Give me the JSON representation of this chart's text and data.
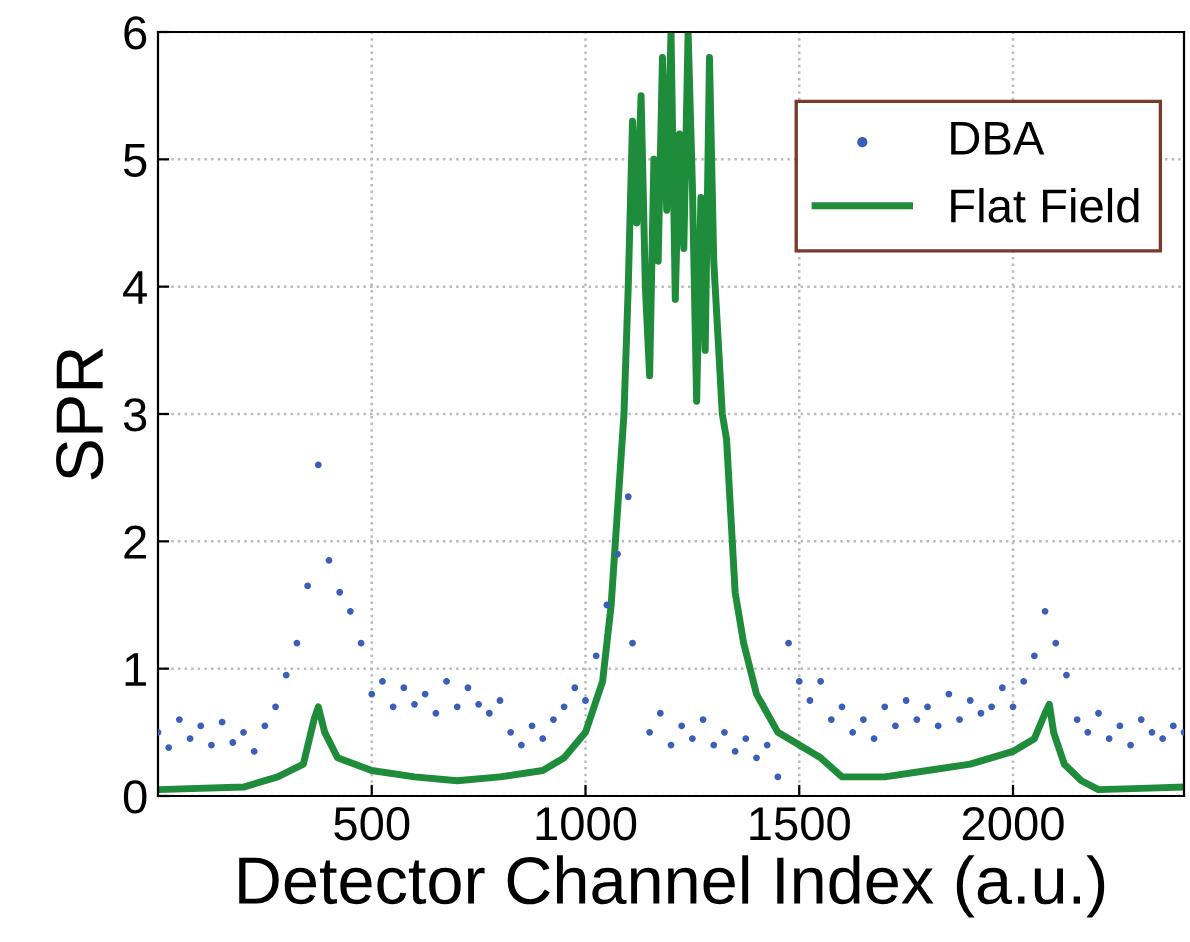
{
  "chart_data": {
    "type": "line",
    "xlabel": "Detector Channel Index (a.u.)",
    "ylabel": "SPR",
    "xlim": [
      0,
      2400
    ],
    "ylim": [
      0,
      6
    ],
    "xticks": [
      500,
      1000,
      1500,
      2000
    ],
    "yticks": [
      0,
      1,
      2,
      3,
      4,
      5,
      6
    ],
    "grid": true,
    "legend": "top right",
    "series": [
      {
        "name": "DBA",
        "type": "scatter",
        "marker": "circle",
        "color": "#3a5fb8",
        "x": [
          0,
          25,
          50,
          75,
          100,
          125,
          150,
          175,
          200,
          225,
          250,
          275,
          300,
          325,
          350,
          375,
          400,
          425,
          450,
          475,
          500,
          525,
          550,
          575,
          600,
          625,
          650,
          675,
          700,
          725,
          750,
          775,
          800,
          825,
          850,
          875,
          900,
          925,
          950,
          975,
          1000,
          1025,
          1050,
          1075,
          1100,
          1110,
          1150,
          1175,
          1200,
          1225,
          1250,
          1275,
          1300,
          1325,
          1350,
          1375,
          1400,
          1425,
          1450,
          1475,
          1500,
          1525,
          1550,
          1575,
          1600,
          1625,
          1650,
          1675,
          1700,
          1725,
          1750,
          1775,
          1800,
          1825,
          1850,
          1875,
          1900,
          1925,
          1950,
          1975,
          2000,
          2025,
          2050,
          2075,
          2100,
          2125,
          2150,
          2175,
          2200,
          2225,
          2250,
          2275,
          2300,
          2325,
          2350,
          2375,
          2400
        ],
        "values": [
          0.5,
          0.38,
          0.6,
          0.45,
          0.55,
          0.4,
          0.58,
          0.42,
          0.5,
          0.35,
          0.55,
          0.7,
          0.95,
          1.2,
          1.65,
          2.6,
          1.85,
          1.6,
          1.45,
          1.2,
          0.8,
          0.9,
          0.7,
          0.85,
          0.72,
          0.8,
          0.65,
          0.9,
          0.7,
          0.85,
          0.72,
          0.65,
          0.75,
          0.5,
          0.4,
          0.55,
          0.45,
          0.6,
          0.7,
          0.85,
          0.75,
          1.1,
          1.5,
          1.9,
          2.35,
          1.2,
          0.5,
          0.65,
          0.4,
          0.55,
          0.45,
          0.6,
          0.4,
          0.5,
          0.35,
          0.45,
          0.3,
          0.4,
          0.15,
          1.2,
          0.9,
          0.75,
          0.9,
          0.6,
          0.7,
          0.5,
          0.6,
          0.45,
          0.7,
          0.55,
          0.75,
          0.6,
          0.7,
          0.55,
          0.8,
          0.6,
          0.75,
          0.65,
          0.7,
          0.85,
          0.7,
          0.9,
          1.1,
          1.45,
          1.2,
          0.95,
          0.6,
          0.5,
          0.65,
          0.45,
          0.55,
          0.4,
          0.6,
          0.5,
          0.45,
          0.55,
          0.5
        ]
      },
      {
        "name": "Flat Field",
        "marker": "none",
        "line_style": "solid",
        "color": "#1e8c3a",
        "x": [
          0,
          200,
          280,
          340,
          365,
          375,
          390,
          420,
          500,
          600,
          700,
          800,
          900,
          950,
          1000,
          1040,
          1060,
          1080,
          1090,
          1100,
          1110,
          1120,
          1130,
          1140,
          1150,
          1160,
          1170,
          1180,
          1190,
          1200,
          1210,
          1220,
          1230,
          1240,
          1250,
          1260,
          1270,
          1280,
          1290,
          1300,
          1310,
          1320,
          1330,
          1340,
          1350,
          1370,
          1400,
          1450,
          1500,
          1550,
          1600,
          1700,
          1800,
          1900,
          2000,
          2050,
          2075,
          2085,
          2095,
          2120,
          2160,
          2200,
          2300,
          2400
        ],
        "values": [
          0.05,
          0.07,
          0.15,
          0.25,
          0.6,
          0.7,
          0.5,
          0.3,
          0.2,
          0.15,
          0.12,
          0.15,
          0.2,
          0.3,
          0.5,
          0.9,
          1.5,
          2.5,
          3.0,
          4.0,
          5.3,
          4.5,
          5.5,
          4.0,
          3.3,
          5.0,
          4.2,
          5.8,
          4.6,
          6.0,
          3.9,
          5.2,
          4.3,
          6.0,
          4.8,
          3.1,
          4.7,
          3.5,
          5.8,
          4.2,
          3.6,
          3.0,
          2.8,
          2.2,
          1.6,
          1.2,
          0.8,
          0.5,
          0.4,
          0.3,
          0.15,
          0.15,
          0.2,
          0.25,
          0.35,
          0.45,
          0.65,
          0.72,
          0.5,
          0.25,
          0.12,
          0.05,
          0.06,
          0.07
        ]
      }
    ]
  }
}
